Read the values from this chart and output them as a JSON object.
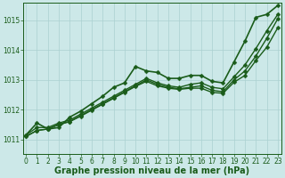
{
  "title": "Graphe pression niveau de la mer (hPa)",
  "background_color": "#cce8e8",
  "grid_color": "#aad0d0",
  "line_color": "#1a5c1a",
  "x_min": 0,
  "x_max": 23,
  "y_min": 1010.5,
  "y_max": 1015.6,
  "series": [
    [
      1011.15,
      1011.55,
      1011.35,
      1011.4,
      1011.75,
      1011.95,
      1012.2,
      1012.45,
      1012.75,
      1012.9,
      1013.45,
      1013.3,
      1013.25,
      1013.05,
      1013.05,
      1013.15,
      1013.15,
      1012.95,
      1012.9,
      1013.6,
      1014.3,
      1015.1,
      1015.2,
      1015.5
    ],
    [
      1011.15,
      1011.4,
      1011.4,
      1011.55,
      1011.65,
      1011.85,
      1012.05,
      1012.25,
      1012.45,
      1012.65,
      1012.85,
      1013.05,
      1012.9,
      1012.8,
      1012.75,
      1012.85,
      1012.9,
      1012.75,
      1012.7,
      1013.1,
      1013.5,
      1014.05,
      1014.65,
      1015.2
    ],
    [
      1011.1,
      1011.3,
      1011.35,
      1011.5,
      1011.6,
      1011.8,
      1012.0,
      1012.2,
      1012.4,
      1012.6,
      1012.8,
      1013.0,
      1012.85,
      1012.75,
      1012.7,
      1012.75,
      1012.8,
      1012.65,
      1012.6,
      1013.0,
      1013.3,
      1013.8,
      1014.4,
      1015.05
    ],
    [
      1011.1,
      1011.3,
      1011.35,
      1011.5,
      1011.6,
      1011.78,
      1011.98,
      1012.18,
      1012.38,
      1012.58,
      1012.78,
      1012.95,
      1012.8,
      1012.72,
      1012.68,
      1012.72,
      1012.72,
      1012.58,
      1012.55,
      1012.92,
      1013.15,
      1013.65,
      1014.1,
      1014.75
    ]
  ],
  "yticks": [
    1011,
    1012,
    1013,
    1014,
    1015
  ],
  "xticks": [
    0,
    1,
    2,
    3,
    4,
    5,
    6,
    7,
    8,
    9,
    10,
    11,
    12,
    13,
    14,
    15,
    16,
    17,
    18,
    19,
    20,
    21,
    22,
    23
  ],
  "title_fontsize": 7,
  "tick_fontsize": 5.5,
  "linewidths": [
    1.2,
    1.0,
    1.0,
    1.0
  ],
  "marker_sizes": [
    2.5,
    2.5,
    2.5,
    2.5
  ]
}
